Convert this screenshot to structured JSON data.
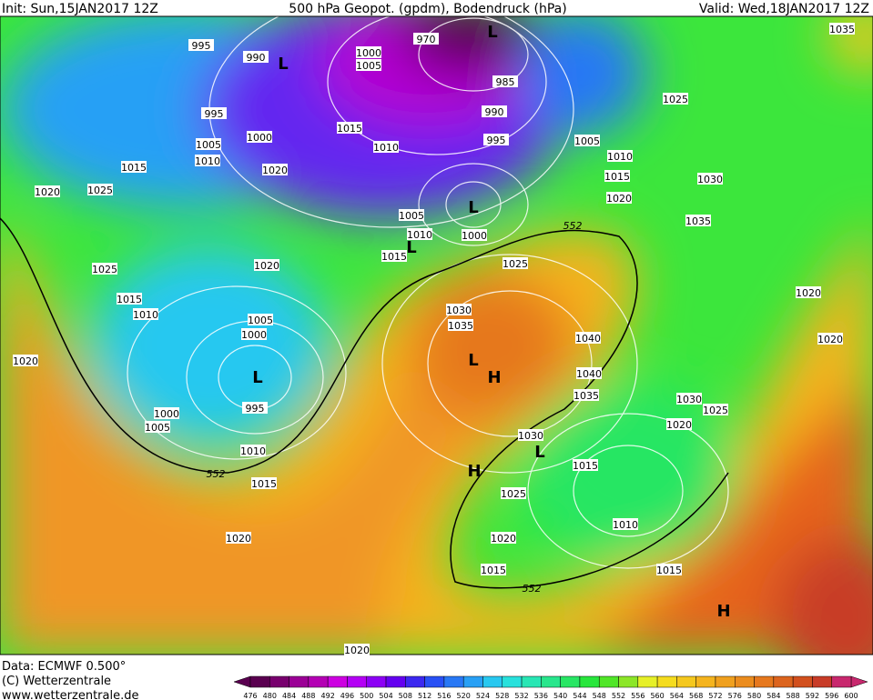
{
  "header": {
    "init": "Init: Sun,15JAN2017 12Z",
    "title": "500 hPa Geopot. (gpdm), Bodendruck (hPa)",
    "valid": "Valid: Wed,18JAN2017 12Z"
  },
  "map": {
    "isobar_labels": [
      995,
      990,
      1000,
      1005,
      970,
      985,
      995,
      990,
      1015,
      1000,
      1005,
      1010,
      995,
      1005,
      1010,
      1015,
      1010,
      1020,
      1015,
      1030,
      1025,
      1035,
      1020,
      1025,
      1020,
      1005,
      1035,
      1010,
      1000,
      1015,
      1025,
      1020,
      1025,
      1015,
      1010,
      1020,
      1030,
      1005,
      1035,
      1000,
      1040,
      1020,
      1020,
      1040,
      1035,
      1030,
      995,
      1025,
      1000,
      1005,
      1020,
      1030,
      1010,
      1015,
      1015,
      1025,
      1010,
      1020,
      1020,
      1015,
      1015,
      1020
    ],
    "contour_labels": [
      552,
      552,
      552
    ],
    "centers": [
      "L",
      "L",
      "L",
      "L",
      "L",
      "H",
      "H",
      "L",
      "H",
      "L"
    ]
  },
  "footer": {
    "data": "Data: ECMWF  0.500°",
    "copyright": "(C) Wetterzentrale",
    "url": "www.wetterzentrale.de"
  },
  "colorbar": {
    "levels": [
      476,
      480,
      484,
      488,
      492,
      496,
      500,
      504,
      508,
      512,
      516,
      520,
      524,
      528,
      532,
      536,
      540,
      544,
      548,
      552,
      556,
      560,
      564,
      568,
      572,
      576,
      580,
      584,
      588,
      592,
      596,
      600
    ],
    "colors": [
      "#5a0050",
      "#78006e",
      "#9b0096",
      "#b400b4",
      "#cd00e1",
      "#b400f5",
      "#8c00f5",
      "#6400f0",
      "#3c28f0",
      "#2850f5",
      "#2878f5",
      "#28a0f5",
      "#28c8f0",
      "#28e1dc",
      "#28e6b4",
      "#28e68c",
      "#28e664",
      "#28e63c",
      "#50e628",
      "#8ce628",
      "#e6f028",
      "#f5dc1e",
      "#f5c81e",
      "#f5b41e",
      "#f0a01e",
      "#eb8c1e",
      "#e6781e",
      "#dc641e",
      "#d2501e",
      "#c83c28",
      "#c8286e"
    ]
  }
}
